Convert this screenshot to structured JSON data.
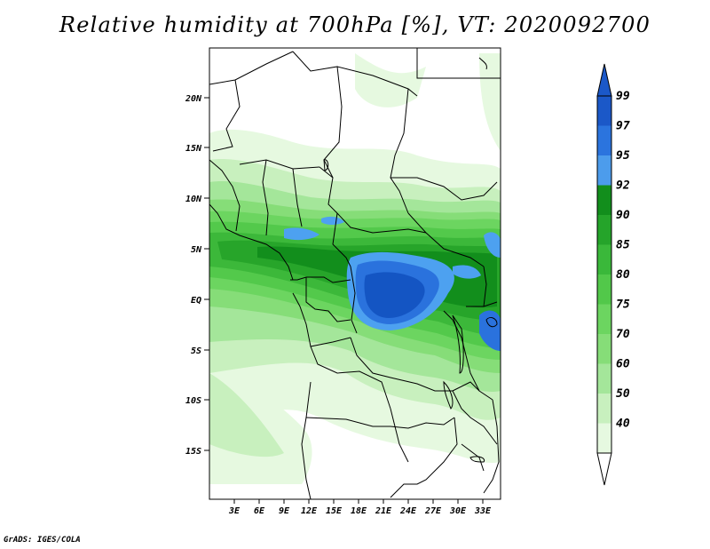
{
  "title": "Relative humidity at 700hPa [%], VT: 2020092700",
  "credit": "GrADS: IGES/COLA",
  "map": {
    "lat_ticks": [
      "20N",
      "15N",
      "10N",
      "5N",
      "EQ",
      "5S",
      "10S",
      "15S"
    ],
    "lon_ticks": [
      "3E",
      "6E",
      "9E",
      "12E",
      "15E",
      "18E",
      "21E",
      "24E",
      "27E",
      "30E",
      "33E"
    ],
    "colors": {
      "c40": "#e6f9e0",
      "c50": "#c8f0be",
      "c60": "#a4e69a",
      "c70": "#86dd78",
      "c75": "#6cd560",
      "c80": "#53c94b",
      "c85": "#3cb83a",
      "c90": "#27a52a",
      "c92": "#128e1c",
      "c95": "#4da1f0",
      "c97": "#2a72dd",
      "c99": "#1455c3",
      "border": "#000000"
    }
  },
  "colorbar": {
    "labels": [
      "99",
      "97",
      "95",
      "92",
      "90",
      "85",
      "80",
      "75",
      "70",
      "60",
      "50",
      "40"
    ],
    "colors": [
      "#1b58c8",
      "#2b74de",
      "#4c9cec",
      "#128e1c",
      "#25a42a",
      "#3ab83a",
      "#52c84a",
      "#6cd560",
      "#86dd78",
      "#a4e69a",
      "#c8f0be",
      "#e6f9e0"
    ]
  }
}
